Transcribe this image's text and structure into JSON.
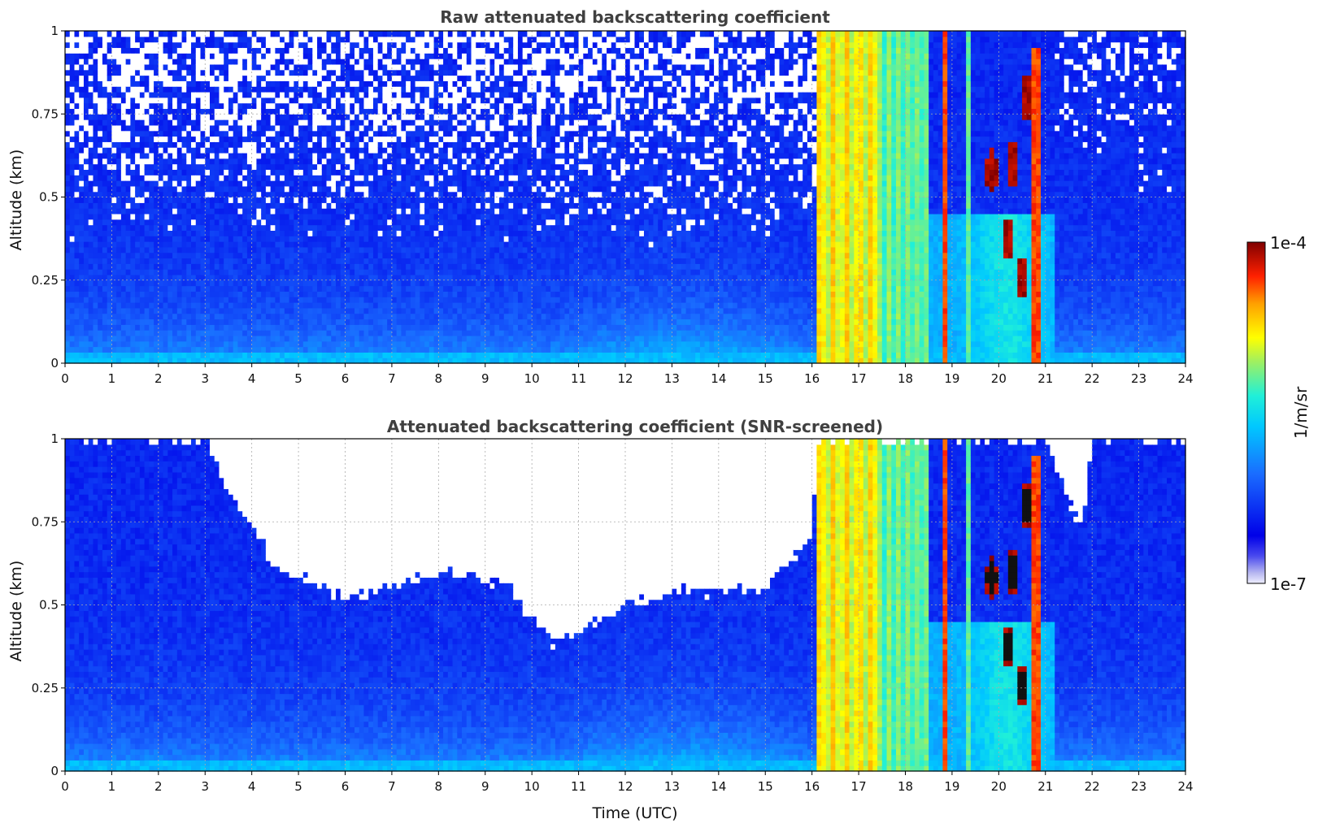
{
  "chart_data": [
    {
      "type": "heatmap",
      "title": "Raw attenuated backscattering coefficient",
      "xlabel": "",
      "ylabel": "Altitude (km)",
      "xlim": [
        0,
        24
      ],
      "ylim": [
        0,
        1
      ],
      "xticks": [
        "0",
        "1",
        "2",
        "3",
        "4",
        "5",
        "6",
        "7",
        "8",
        "9",
        "10",
        "11",
        "12",
        "13",
        "14",
        "15",
        "16",
        "17",
        "18",
        "19",
        "20",
        "21",
        "22",
        "23",
        "24"
      ],
      "yticks": [
        "0",
        "0.25",
        "0.5",
        "0.75",
        "1"
      ],
      "grid": true,
      "colormap": "jet",
      "colorscale": "log",
      "screened": false,
      "features": [
        {
          "kind": "cloud_band",
          "x_start": 16.1,
          "x_end": 17.4,
          "level": "yellow"
        },
        {
          "kind": "cloud_band",
          "x_start": 17.4,
          "x_end": 18.5,
          "level": "green"
        },
        {
          "kind": "cloud_line",
          "x": 18.85,
          "level": "red"
        },
        {
          "kind": "cloud_line",
          "x": 20.8,
          "level": "red"
        },
        {
          "kind": "cloud_patch",
          "x": 19.85,
          "y": 0.58,
          "level": "darkred"
        },
        {
          "kind": "cloud_patch",
          "x": 20.3,
          "y": 0.6,
          "level": "darkred"
        },
        {
          "kind": "cloud_patch",
          "x": 20.5,
          "y": 0.26,
          "level": "darkred"
        }
      ]
    },
    {
      "type": "heatmap",
      "title": "Attenuated backscattering coefficient (SNR-screened)",
      "xlabel": "Time (UTC)",
      "ylabel": "Altitude (km)",
      "xlim": [
        0,
        24
      ],
      "ylim": [
        0,
        1
      ],
      "xticks": [
        "0",
        "1",
        "2",
        "3",
        "4",
        "5",
        "6",
        "7",
        "8",
        "9",
        "10",
        "11",
        "12",
        "13",
        "14",
        "15",
        "16",
        "17",
        "18",
        "19",
        "20",
        "21",
        "22",
        "23",
        "24"
      ],
      "yticks": [
        "0",
        "0.25",
        "0.5",
        "0.75",
        "1"
      ],
      "grid": true,
      "colormap": "jet",
      "colorscale": "log",
      "screened": true,
      "screen_boundary": [
        {
          "x": 0,
          "y": 1.0
        },
        {
          "x": 3.0,
          "y": 1.0
        },
        {
          "x": 3.5,
          "y": 0.85
        },
        {
          "x": 4.5,
          "y": 0.62
        },
        {
          "x": 6.0,
          "y": 0.52
        },
        {
          "x": 8.0,
          "y": 0.6
        },
        {
          "x": 9.5,
          "y": 0.56
        },
        {
          "x": 10.4,
          "y": 0.38
        },
        {
          "x": 11.5,
          "y": 0.47
        },
        {
          "x": 13.0,
          "y": 0.54
        },
        {
          "x": 15.0,
          "y": 0.55
        },
        {
          "x": 16.0,
          "y": 0.7
        },
        {
          "x": 16.1,
          "y": 1.0
        },
        {
          "x": 21.0,
          "y": 1.0
        },
        {
          "x": 21.8,
          "y": 0.72
        },
        {
          "x": 22.0,
          "y": 1.0
        },
        {
          "x": 24,
          "y": 1.0
        }
      ]
    }
  ],
  "colorbar": {
    "label": "1/m/sr",
    "max_label": "1e-4",
    "min_label": "1e-7"
  }
}
